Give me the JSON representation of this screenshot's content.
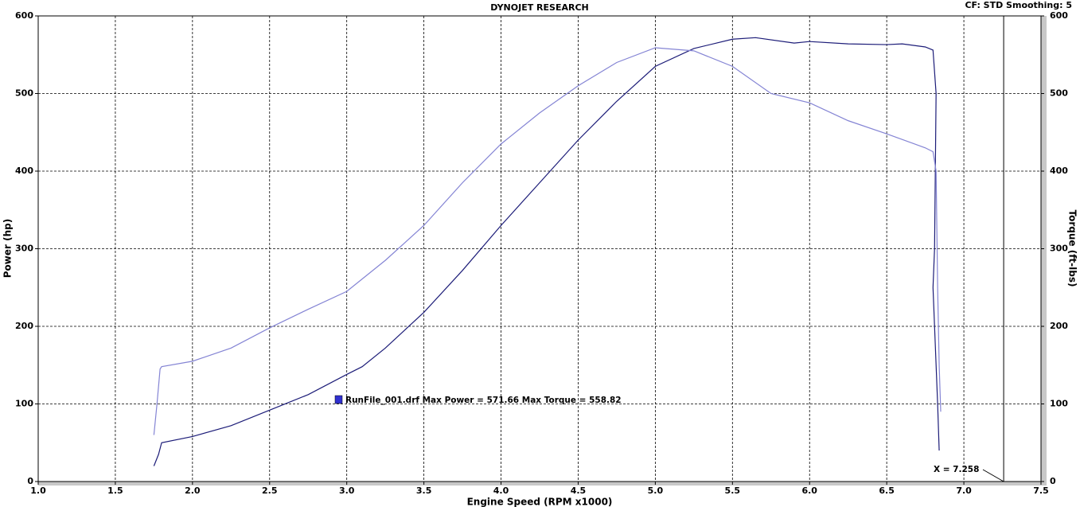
{
  "chart_data": {
    "type": "line",
    "title": "DYNOJET RESEARCH",
    "subtitle": "CF: STD  Smoothing: 5",
    "x_label": "Engine Speed (RPM x1000)",
    "y_label": "Power (hp)",
    "y2_label": "Torque (ft-lbs)",
    "annotation": "RunFile_001.drf Max Power = 571.66    Max Torque = 558.82",
    "cursor": {
      "value": 7.258,
      "label": "X = 7.258"
    },
    "xlim": [
      1.0,
      7.5
    ],
    "xticks": [
      {
        "value": 1.0,
        "label": "1.0"
      },
      1.5,
      {
        "value": 2.0,
        "label": "2.0"
      },
      2.5,
      {
        "value": 3.0,
        "label": "3.0"
      },
      3.5,
      {
        "value": 4.0,
        "label": "4.0"
      },
      4.5,
      {
        "value": 5.0,
        "label": "5.0"
      },
      5.5,
      {
        "value": 6.0,
        "label": "6.0"
      },
      6.5,
      {
        "value": 7.0,
        "label": "7.0"
      },
      7.5
    ],
    "ylim": [
      0,
      600
    ],
    "yticks": [
      0,
      100,
      200,
      300,
      400,
      500,
      600
    ],
    "y2lim": [
      0,
      600
    ],
    "y2ticks": [
      0,
      100,
      200,
      300,
      400,
      500,
      600
    ],
    "grid": true,
    "series": [
      {
        "name": "Power",
        "color": "#1c1c78",
        "x": [
          1.75,
          1.78,
          1.8,
          2.0,
          2.25,
          2.5,
          2.75,
          3.0,
          3.1,
          3.25,
          3.5,
          3.75,
          4.0,
          4.25,
          4.5,
          4.75,
          5.0,
          5.25,
          5.5,
          5.65,
          5.9,
          6.0,
          6.25,
          6.5,
          6.6,
          6.75,
          6.8,
          6.82,
          6.81,
          6.8,
          6.81,
          6.83,
          6.84
        ],
        "values": [
          20,
          35,
          50,
          58,
          72,
          92,
          112,
          138,
          148,
          172,
          218,
          272,
          330,
          385,
          440,
          490,
          535,
          558,
          570,
          572,
          565,
          567,
          564,
          563,
          564,
          560,
          556,
          500,
          300,
          250,
          200,
          100,
          40
        ]
      },
      {
        "name": "Torque",
        "color": "#8484d4",
        "axis": "y2",
        "x": [
          1.75,
          1.77,
          1.79,
          1.8,
          2.0,
          2.25,
          2.5,
          2.75,
          3.0,
          3.25,
          3.5,
          3.75,
          4.0,
          4.25,
          4.5,
          4.75,
          5.0,
          5.25,
          5.5,
          5.75,
          6.0,
          6.25,
          6.5,
          6.75,
          6.8,
          6.82,
          6.83,
          6.84,
          6.85
        ],
        "values": [
          60,
          100,
          145,
          148,
          155,
          172,
          198,
          222,
          245,
          285,
          330,
          385,
          435,
          475,
          510,
          540,
          559,
          555,
          535,
          500,
          488,
          465,
          448,
          430,
          425,
          400,
          250,
          150,
          90
        ]
      }
    ]
  }
}
